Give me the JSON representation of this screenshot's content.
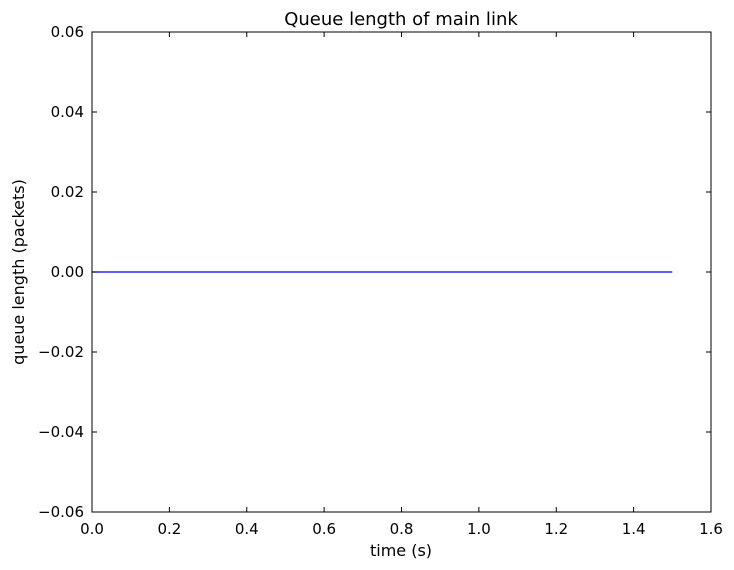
{
  "chart_data": {
    "type": "line",
    "title": "Queue length of main link",
    "xlabel": "time (s)",
    "ylabel": "queue length (packets)",
    "xlim": [
      0.0,
      1.6
    ],
    "ylim": [
      -0.06,
      0.06
    ],
    "x_ticks": [
      "0.0",
      "0.2",
      "0.4",
      "0.6",
      "0.8",
      "1.0",
      "1.2",
      "1.4",
      "1.6"
    ],
    "y_ticks": [
      "0.06",
      "0.04",
      "0.02",
      "0.00",
      "−0.02",
      "−0.04",
      "−0.06"
    ],
    "grid": false,
    "series": [
      {
        "color": "#0000ff",
        "x": [
          0.0,
          1.5
        ],
        "y": [
          0.0,
          0.0
        ]
      }
    ]
  }
}
